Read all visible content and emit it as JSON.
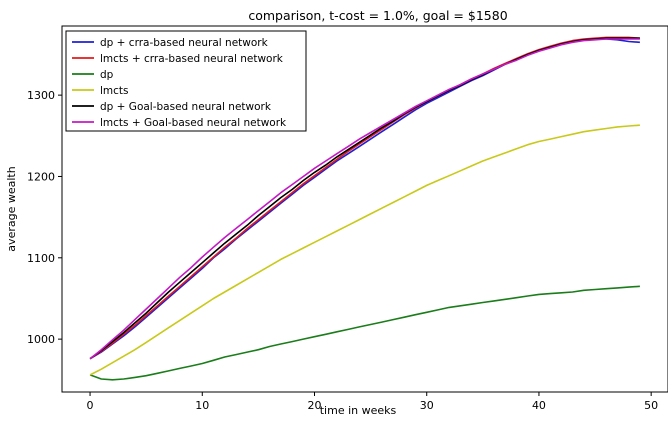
{
  "chart_data": {
    "type": "line",
    "title": "comparison, t-cost = 1.0%, goal = $1580",
    "xlabel": "time in weeks",
    "ylabel": "average wealth",
    "xlim": [
      -2.5,
      51.5
    ],
    "ylim": [
      935,
      1385
    ],
    "xticks": [
      0,
      10,
      20,
      30,
      40,
      50
    ],
    "yticks": [
      1000,
      1100,
      1200,
      1300
    ],
    "grid": false,
    "legend_position": "top-left",
    "x": [
      0,
      1,
      2,
      3,
      4,
      5,
      6,
      7,
      8,
      9,
      10,
      11,
      12,
      13,
      14,
      15,
      16,
      17,
      18,
      19,
      20,
      21,
      22,
      23,
      24,
      25,
      26,
      27,
      28,
      29,
      30,
      31,
      32,
      33,
      34,
      35,
      36,
      37,
      38,
      39,
      40,
      41,
      42,
      43,
      44,
      45,
      46,
      47,
      48,
      49
    ],
    "series": [
      {
        "name": "dp + crra-based neural network",
        "color": "#1f1fd6",
        "values": [
          976,
          984,
          994,
          1004,
          1015,
          1027,
          1039,
          1051,
          1063,
          1075,
          1087,
          1100,
          1111,
          1123,
          1134,
          1145,
          1156,
          1167,
          1178,
          1189,
          1199,
          1209,
          1219,
          1228,
          1237,
          1246,
          1255,
          1264,
          1273,
          1282,
          1290,
          1297,
          1304,
          1311,
          1318,
          1324,
          1331,
          1338,
          1344,
          1350,
          1355,
          1359,
          1363,
          1366,
          1368,
          1369,
          1369,
          1368,
          1366,
          1365
        ]
      },
      {
        "name": "lmcts + crra-based neural network",
        "color": "#e31a1c",
        "values": [
          976,
          985,
          995,
          1006,
          1017,
          1029,
          1041,
          1053,
          1065,
          1077,
          1089,
          1101,
          1113,
          1124,
          1136,
          1147,
          1158,
          1169,
          1180,
          1191,
          1201,
          1211,
          1221,
          1231,
          1240,
          1249,
          1258,
          1267,
          1276,
          1284,
          1292,
          1299,
          1306,
          1313,
          1320,
          1326,
          1333,
          1339,
          1345,
          1351,
          1356,
          1360,
          1364,
          1367,
          1369,
          1370,
          1371,
          1371,
          1371,
          1370
        ]
      },
      {
        "name": "dp",
        "color": "#1a7d1a",
        "values": [
          956,
          951,
          950,
          951,
          953,
          955,
          958,
          961,
          964,
          967,
          970,
          974,
          978,
          981,
          984,
          987,
          991,
          994,
          997,
          1000,
          1003,
          1006,
          1009,
          1012,
          1015,
          1018,
          1021,
          1024,
          1027,
          1030,
          1033,
          1036,
          1039,
          1041,
          1043,
          1045,
          1047,
          1049,
          1051,
          1053,
          1055,
          1056,
          1057,
          1058,
          1060,
          1061,
          1062,
          1063,
          1064,
          1065
        ]
      },
      {
        "name": "lmcts",
        "color": "#c9c91a",
        "values": [
          956,
          963,
          971,
          979,
          987,
          996,
          1005,
          1014,
          1023,
          1032,
          1041,
          1050,
          1058,
          1066,
          1074,
          1082,
          1090,
          1098,
          1105,
          1112,
          1119,
          1126,
          1133,
          1140,
          1147,
          1154,
          1161,
          1168,
          1175,
          1182,
          1189,
          1195,
          1201,
          1207,
          1213,
          1219,
          1224,
          1229,
          1234,
          1239,
          1243,
          1246,
          1249,
          1252,
          1255,
          1257,
          1259,
          1261,
          1262,
          1263
        ]
      },
      {
        "name": "dp + Goal-based neural network",
        "color": "#000000",
        "values": [
          976,
          986,
          997,
          1008,
          1020,
          1032,
          1045,
          1058,
          1070,
          1082,
          1094,
          1106,
          1118,
          1129,
          1140,
          1152,
          1163,
          1174,
          1184,
          1195,
          1205,
          1214,
          1224,
          1233,
          1242,
          1251,
          1260,
          1268,
          1277,
          1285,
          1292,
          1299,
          1306,
          1312,
          1319,
          1325,
          1332,
          1338,
          1344,
          1350,
          1355,
          1359,
          1363,
          1366,
          1368,
          1369,
          1370,
          1370,
          1370,
          1370
        ]
      },
      {
        "name": "lmcts + Goal-based neural network",
        "color": "#c41ac4",
        "values": [
          976,
          987,
          999,
          1011,
          1024,
          1037,
          1050,
          1063,
          1076,
          1088,
          1101,
          1113,
          1125,
          1136,
          1147,
          1158,
          1169,
          1180,
          1190,
          1200,
          1210,
          1219,
          1228,
          1237,
          1246,
          1254,
          1262,
          1270,
          1278,
          1286,
          1293,
          1300,
          1307,
          1313,
          1320,
          1326,
          1332,
          1338,
          1343,
          1349,
          1354,
          1358,
          1362,
          1365,
          1367,
          1368,
          1369,
          1369,
          1369,
          1369
        ]
      }
    ]
  }
}
